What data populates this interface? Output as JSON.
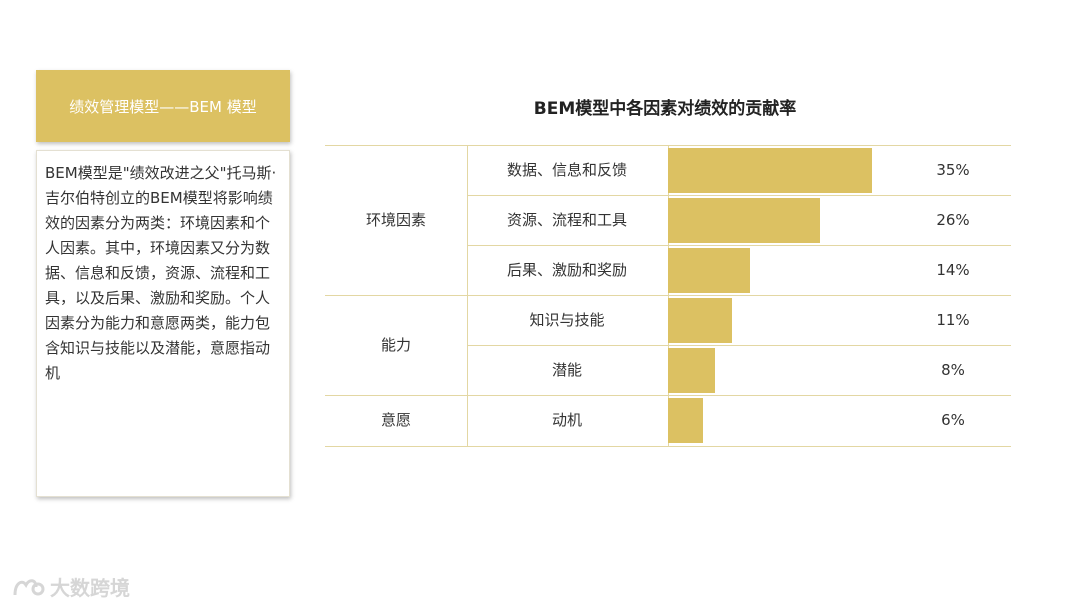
{
  "left_card": {
    "title": "绩效管理模型——BEM 模型",
    "body": "BEM模型是\"绩效改进之父\"托马斯·吉尔伯特创立的BEM模型将影响绩效的因素分为两类：环境因素和个人因素。其中，环境因素又分为数据、信息和反馈，资源、流程和工具，以及后果、激励和奖励。个人因素分为能力和意愿两类，能力包含知识与技能以及潜能，意愿指动机"
  },
  "watermark": {
    "text": "大数跨境"
  },
  "colors": {
    "accent": "#dcc162",
    "grid": "#e3d7a3"
  },
  "chart_data": {
    "type": "bar",
    "orientation": "horizontal",
    "title": "BEM模型中各因素对绩效的贡献率",
    "groups": [
      {
        "name": "环境因素",
        "rows": [
          0,
          1,
          2
        ]
      },
      {
        "name": "能力",
        "rows": [
          3,
          4
        ]
      },
      {
        "name": "意愿",
        "rows": [
          5
        ]
      }
    ],
    "categories": [
      "数据、信息和反馈",
      "资源、流程和工具",
      "后果、激励和奖励",
      "知识与技能",
      "潜能",
      "动机"
    ],
    "values": [
      35,
      26,
      14,
      11,
      8,
      6
    ],
    "value_labels": [
      "35%",
      "26%",
      "14%",
      "11%",
      "8%",
      "6%"
    ],
    "xlim": [
      0,
      35
    ]
  }
}
